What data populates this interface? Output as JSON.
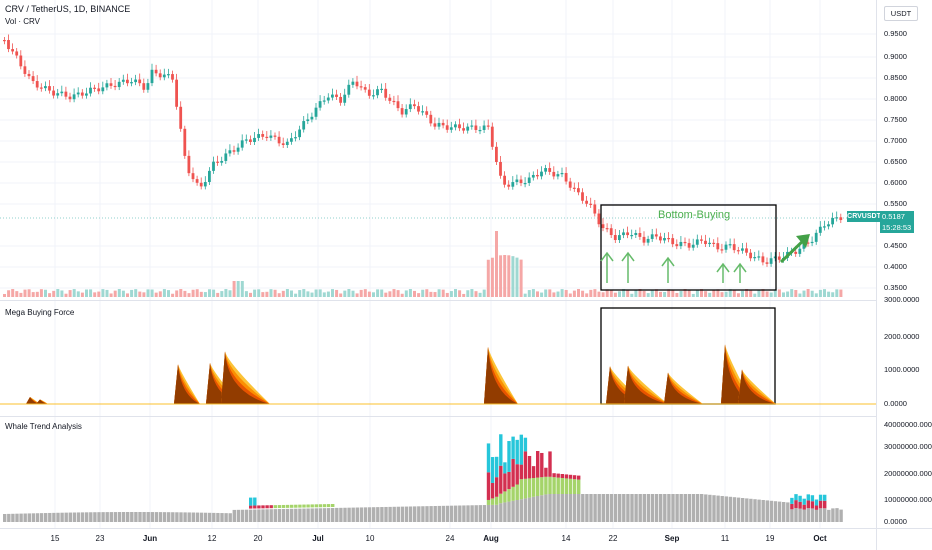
{
  "header": {
    "title": "CRV / TetherUS, 1D, BINANCE",
    "volume_label": "Vol · CRV",
    "currency_button": "USDT"
  },
  "price_pane": {
    "y_ticks": [
      "0.9500",
      "0.9000",
      "0.8500",
      "0.8000",
      "0.7500",
      "0.7000",
      "0.6500",
      "0.6000",
      "0.5500",
      "0.4500",
      "0.4000",
      "0.3500"
    ],
    "symbol_badge": "CRVUSDT",
    "last_price": "0.5187",
    "countdown": "15:28:53",
    "annotation": "Bottom-Buying",
    "colors": {
      "up": "#26a69a",
      "down": "#ef5350",
      "annotation": "#4caf50"
    }
  },
  "mega_pane": {
    "title": "Mega Buying Force",
    "y_ticks": [
      "3000.0000",
      "2000.0000",
      "1000.0000",
      "0.0000"
    ]
  },
  "whale_pane": {
    "title": "Whale Trend Analysis",
    "y_ticks": [
      "40000000.0000",
      "30000000.0000",
      "20000000.0000",
      "10000000.0000",
      "0.0000"
    ]
  },
  "x_axis": {
    "ticks": [
      "15",
      "23",
      "Jun",
      "12",
      "20",
      "Jul",
      "10",
      "24",
      "Aug",
      "14",
      "22",
      "Sep",
      "11",
      "19",
      "Oct"
    ]
  }
}
